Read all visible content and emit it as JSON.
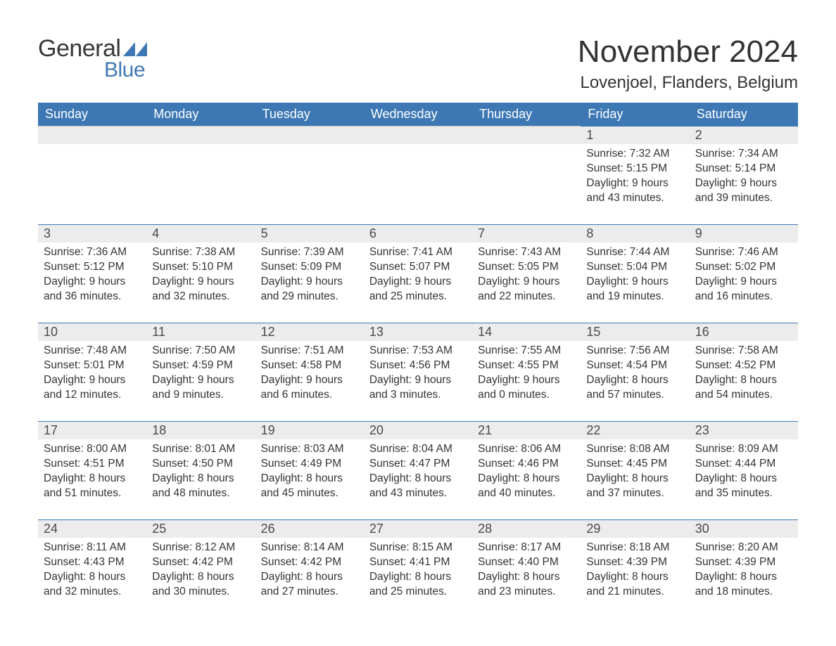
{
  "colors": {
    "header_bg": "#3d78b4",
    "header_text": "#ffffff",
    "daynum_bg": "#ececec",
    "daynum_border": "#3d78b4",
    "body_text": "#333333",
    "logo_general": "#373737",
    "logo_blue": "#4279b3",
    "page_bg": "#ffffff"
  },
  "typography": {
    "month_title_fontsize": 44,
    "location_fontsize": 24,
    "dayhead_fontsize": 18,
    "daynum_fontsize": 18,
    "body_fontsize": 15.5,
    "logo_general_fontsize": 34,
    "logo_blue_fontsize": 30
  },
  "logo": {
    "line1": "General",
    "line2": "Blue"
  },
  "header": {
    "month": "November 2024",
    "location": "Lovenjoel, Flanders, Belgium"
  },
  "dayNames": [
    "Sunday",
    "Monday",
    "Tuesday",
    "Wednesday",
    "Thursday",
    "Friday",
    "Saturday"
  ],
  "calendar": {
    "type": "table",
    "columns": 7,
    "rows": 5,
    "layout": "week-row",
    "weeks": [
      [
        {
          "empty": true
        },
        {
          "empty": true
        },
        {
          "empty": true
        },
        {
          "empty": true
        },
        {
          "empty": true
        },
        {
          "day": "1",
          "sunrise": "Sunrise: 7:32 AM",
          "sunset": "Sunset: 5:15 PM",
          "daylight1": "Daylight: 9 hours",
          "daylight2": "and 43 minutes."
        },
        {
          "day": "2",
          "sunrise": "Sunrise: 7:34 AM",
          "sunset": "Sunset: 5:14 PM",
          "daylight1": "Daylight: 9 hours",
          "daylight2": "and 39 minutes."
        }
      ],
      [
        {
          "day": "3",
          "sunrise": "Sunrise: 7:36 AM",
          "sunset": "Sunset: 5:12 PM",
          "daylight1": "Daylight: 9 hours",
          "daylight2": "and 36 minutes."
        },
        {
          "day": "4",
          "sunrise": "Sunrise: 7:38 AM",
          "sunset": "Sunset: 5:10 PM",
          "daylight1": "Daylight: 9 hours",
          "daylight2": "and 32 minutes."
        },
        {
          "day": "5",
          "sunrise": "Sunrise: 7:39 AM",
          "sunset": "Sunset: 5:09 PM",
          "daylight1": "Daylight: 9 hours",
          "daylight2": "and 29 minutes."
        },
        {
          "day": "6",
          "sunrise": "Sunrise: 7:41 AM",
          "sunset": "Sunset: 5:07 PM",
          "daylight1": "Daylight: 9 hours",
          "daylight2": "and 25 minutes."
        },
        {
          "day": "7",
          "sunrise": "Sunrise: 7:43 AM",
          "sunset": "Sunset: 5:05 PM",
          "daylight1": "Daylight: 9 hours",
          "daylight2": "and 22 minutes."
        },
        {
          "day": "8",
          "sunrise": "Sunrise: 7:44 AM",
          "sunset": "Sunset: 5:04 PM",
          "daylight1": "Daylight: 9 hours",
          "daylight2": "and 19 minutes."
        },
        {
          "day": "9",
          "sunrise": "Sunrise: 7:46 AM",
          "sunset": "Sunset: 5:02 PM",
          "daylight1": "Daylight: 9 hours",
          "daylight2": "and 16 minutes."
        }
      ],
      [
        {
          "day": "10",
          "sunrise": "Sunrise: 7:48 AM",
          "sunset": "Sunset: 5:01 PM",
          "daylight1": "Daylight: 9 hours",
          "daylight2": "and 12 minutes."
        },
        {
          "day": "11",
          "sunrise": "Sunrise: 7:50 AM",
          "sunset": "Sunset: 4:59 PM",
          "daylight1": "Daylight: 9 hours",
          "daylight2": "and 9 minutes."
        },
        {
          "day": "12",
          "sunrise": "Sunrise: 7:51 AM",
          "sunset": "Sunset: 4:58 PM",
          "daylight1": "Daylight: 9 hours",
          "daylight2": "and 6 minutes."
        },
        {
          "day": "13",
          "sunrise": "Sunrise: 7:53 AM",
          "sunset": "Sunset: 4:56 PM",
          "daylight1": "Daylight: 9 hours",
          "daylight2": "and 3 minutes."
        },
        {
          "day": "14",
          "sunrise": "Sunrise: 7:55 AM",
          "sunset": "Sunset: 4:55 PM",
          "daylight1": "Daylight: 9 hours",
          "daylight2": "and 0 minutes."
        },
        {
          "day": "15",
          "sunrise": "Sunrise: 7:56 AM",
          "sunset": "Sunset: 4:54 PM",
          "daylight1": "Daylight: 8 hours",
          "daylight2": "and 57 minutes."
        },
        {
          "day": "16",
          "sunrise": "Sunrise: 7:58 AM",
          "sunset": "Sunset: 4:52 PM",
          "daylight1": "Daylight: 8 hours",
          "daylight2": "and 54 minutes."
        }
      ],
      [
        {
          "day": "17",
          "sunrise": "Sunrise: 8:00 AM",
          "sunset": "Sunset: 4:51 PM",
          "daylight1": "Daylight: 8 hours",
          "daylight2": "and 51 minutes."
        },
        {
          "day": "18",
          "sunrise": "Sunrise: 8:01 AM",
          "sunset": "Sunset: 4:50 PM",
          "daylight1": "Daylight: 8 hours",
          "daylight2": "and 48 minutes."
        },
        {
          "day": "19",
          "sunrise": "Sunrise: 8:03 AM",
          "sunset": "Sunset: 4:49 PM",
          "daylight1": "Daylight: 8 hours",
          "daylight2": "and 45 minutes."
        },
        {
          "day": "20",
          "sunrise": "Sunrise: 8:04 AM",
          "sunset": "Sunset: 4:47 PM",
          "daylight1": "Daylight: 8 hours",
          "daylight2": "and 43 minutes."
        },
        {
          "day": "21",
          "sunrise": "Sunrise: 8:06 AM",
          "sunset": "Sunset: 4:46 PM",
          "daylight1": "Daylight: 8 hours",
          "daylight2": "and 40 minutes."
        },
        {
          "day": "22",
          "sunrise": "Sunrise: 8:08 AM",
          "sunset": "Sunset: 4:45 PM",
          "daylight1": "Daylight: 8 hours",
          "daylight2": "and 37 minutes."
        },
        {
          "day": "23",
          "sunrise": "Sunrise: 8:09 AM",
          "sunset": "Sunset: 4:44 PM",
          "daylight1": "Daylight: 8 hours",
          "daylight2": "and 35 minutes."
        }
      ],
      [
        {
          "day": "24",
          "sunrise": "Sunrise: 8:11 AM",
          "sunset": "Sunset: 4:43 PM",
          "daylight1": "Daylight: 8 hours",
          "daylight2": "and 32 minutes."
        },
        {
          "day": "25",
          "sunrise": "Sunrise: 8:12 AM",
          "sunset": "Sunset: 4:42 PM",
          "daylight1": "Daylight: 8 hours",
          "daylight2": "and 30 minutes."
        },
        {
          "day": "26",
          "sunrise": "Sunrise: 8:14 AM",
          "sunset": "Sunset: 4:42 PM",
          "daylight1": "Daylight: 8 hours",
          "daylight2": "and 27 minutes."
        },
        {
          "day": "27",
          "sunrise": "Sunrise: 8:15 AM",
          "sunset": "Sunset: 4:41 PM",
          "daylight1": "Daylight: 8 hours",
          "daylight2": "and 25 minutes."
        },
        {
          "day": "28",
          "sunrise": "Sunrise: 8:17 AM",
          "sunset": "Sunset: 4:40 PM",
          "daylight1": "Daylight: 8 hours",
          "daylight2": "and 23 minutes."
        },
        {
          "day": "29",
          "sunrise": "Sunrise: 8:18 AM",
          "sunset": "Sunset: 4:39 PM",
          "daylight1": "Daylight: 8 hours",
          "daylight2": "and 21 minutes."
        },
        {
          "day": "30",
          "sunrise": "Sunrise: 8:20 AM",
          "sunset": "Sunset: 4:39 PM",
          "daylight1": "Daylight: 8 hours",
          "daylight2": "and 18 minutes."
        }
      ]
    ]
  }
}
